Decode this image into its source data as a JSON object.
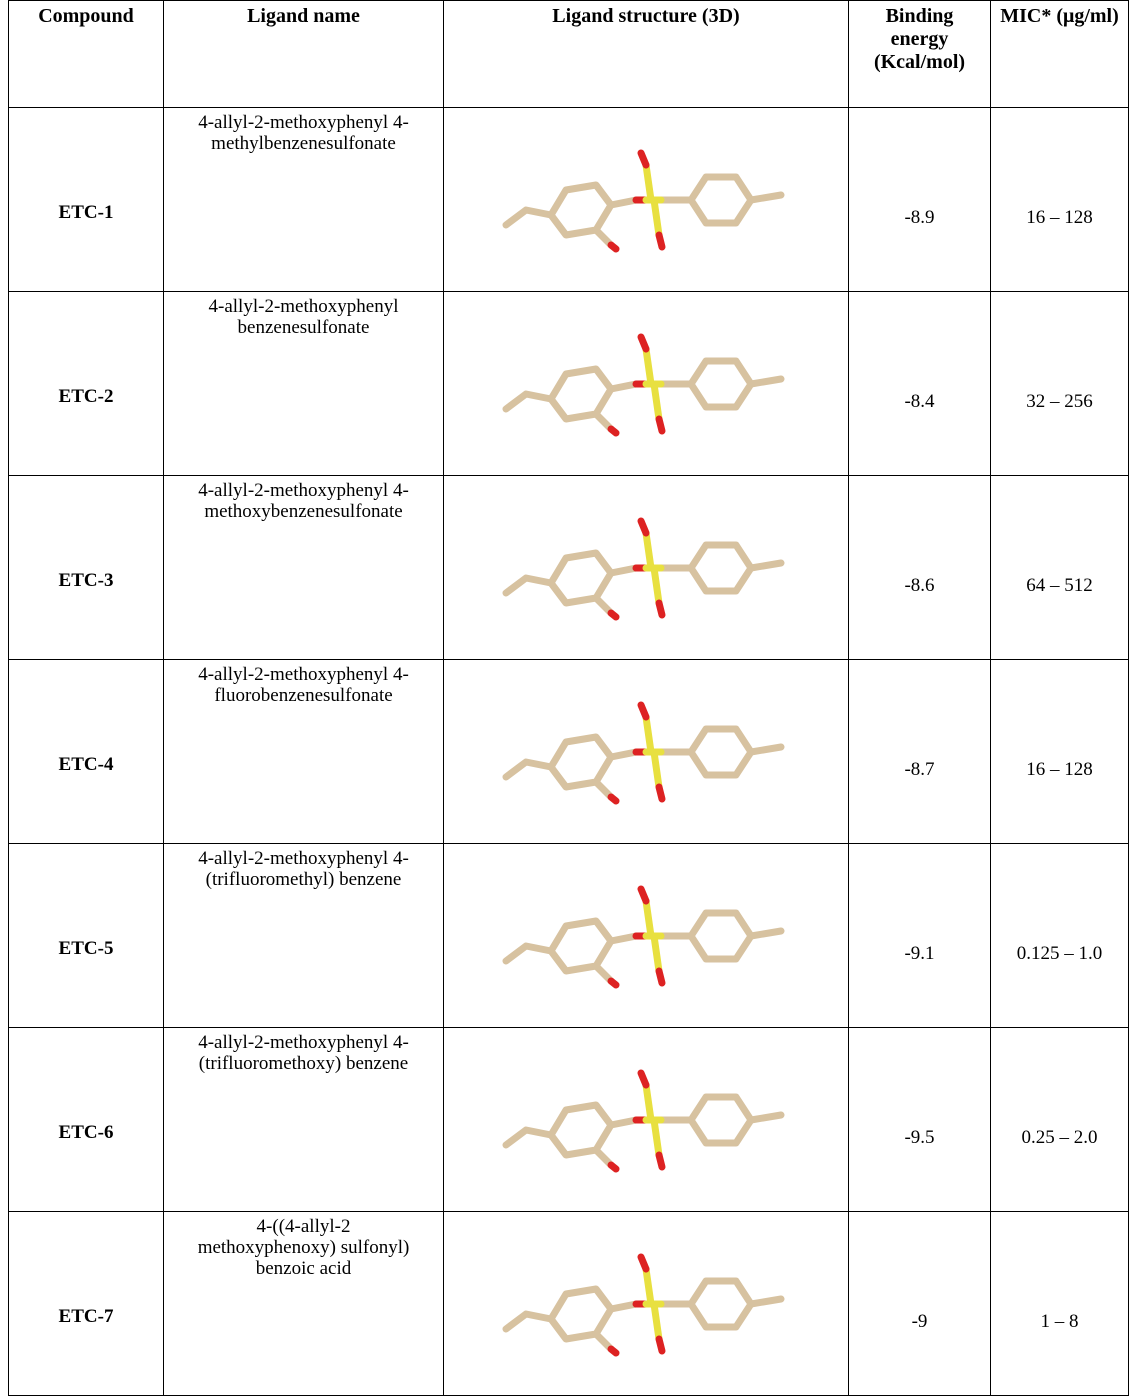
{
  "table": {
    "header": [
      "Compound",
      "Ligand name",
      "Ligand structure (3D)",
      "Binding energy (Kcal/mol)",
      "MIC* (μg/ml)"
    ],
    "rows": [
      [
        "ETC-1",
        "4-allyl-2-methoxyphenyl 4-methylbenzenesulfonate",
        -8.9,
        "16 – 128"
      ],
      [
        "ETC-2",
        "4-allyl-2-methoxyphenyl benzenesulfonate",
        -8.4,
        "32 – 256"
      ],
      [
        "ETC-3",
        "4-allyl-2-methoxyphenyl 4-methoxybenzenesulfonate",
        -8.6,
        "64 – 512"
      ],
      [
        "ETC-4",
        "4-allyl-2-methoxyphenyl 4-fluorobenzenesulfonate",
        -8.7,
        "16 – 128"
      ],
      [
        "ETC-5",
        "4-allyl-2-methoxyphenyl 4-(trifluoromethyl) benzene",
        -9.1,
        "0.125 – 1.0"
      ],
      [
        "ETC-6",
        "4-allyl-2-methoxyphenyl 4-(trifluoromethoxy) benzene",
        -9.5,
        "0.25 – 2.0"
      ],
      [
        "ETC-7",
        "4-((4-allyl-2 methoxyphenoxy) sulfonyl) benzoic acid",
        -9.0,
        "1 – 8"
      ]
    ]
  }
}
